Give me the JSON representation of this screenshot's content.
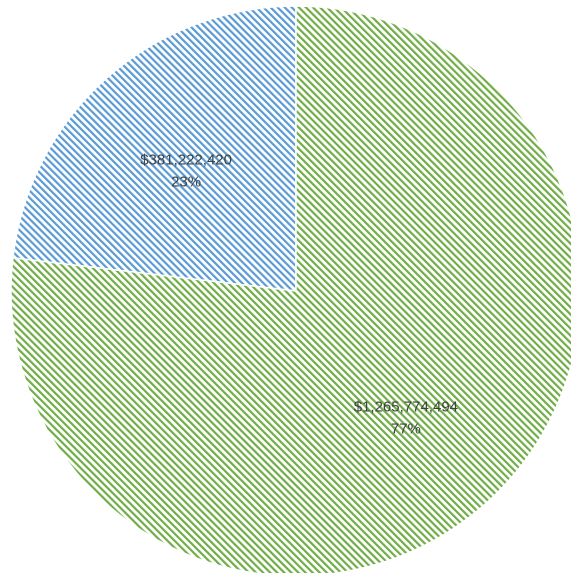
{
  "chart_data": {
    "type": "pie",
    "start_angle_deg": 0,
    "direction": "counterclockwise",
    "slices": [
      {
        "value": 381222420,
        "value_label": "$381,222,420",
        "percent_label": "23%",
        "color": "#5b9bd5",
        "pattern": "diagonal-hatch"
      },
      {
        "value": 1265774494,
        "value_label": "$1,265,774,494",
        "percent_label": "77%",
        "color": "#70ad47",
        "pattern": "diagonal-hatch"
      }
    ]
  }
}
